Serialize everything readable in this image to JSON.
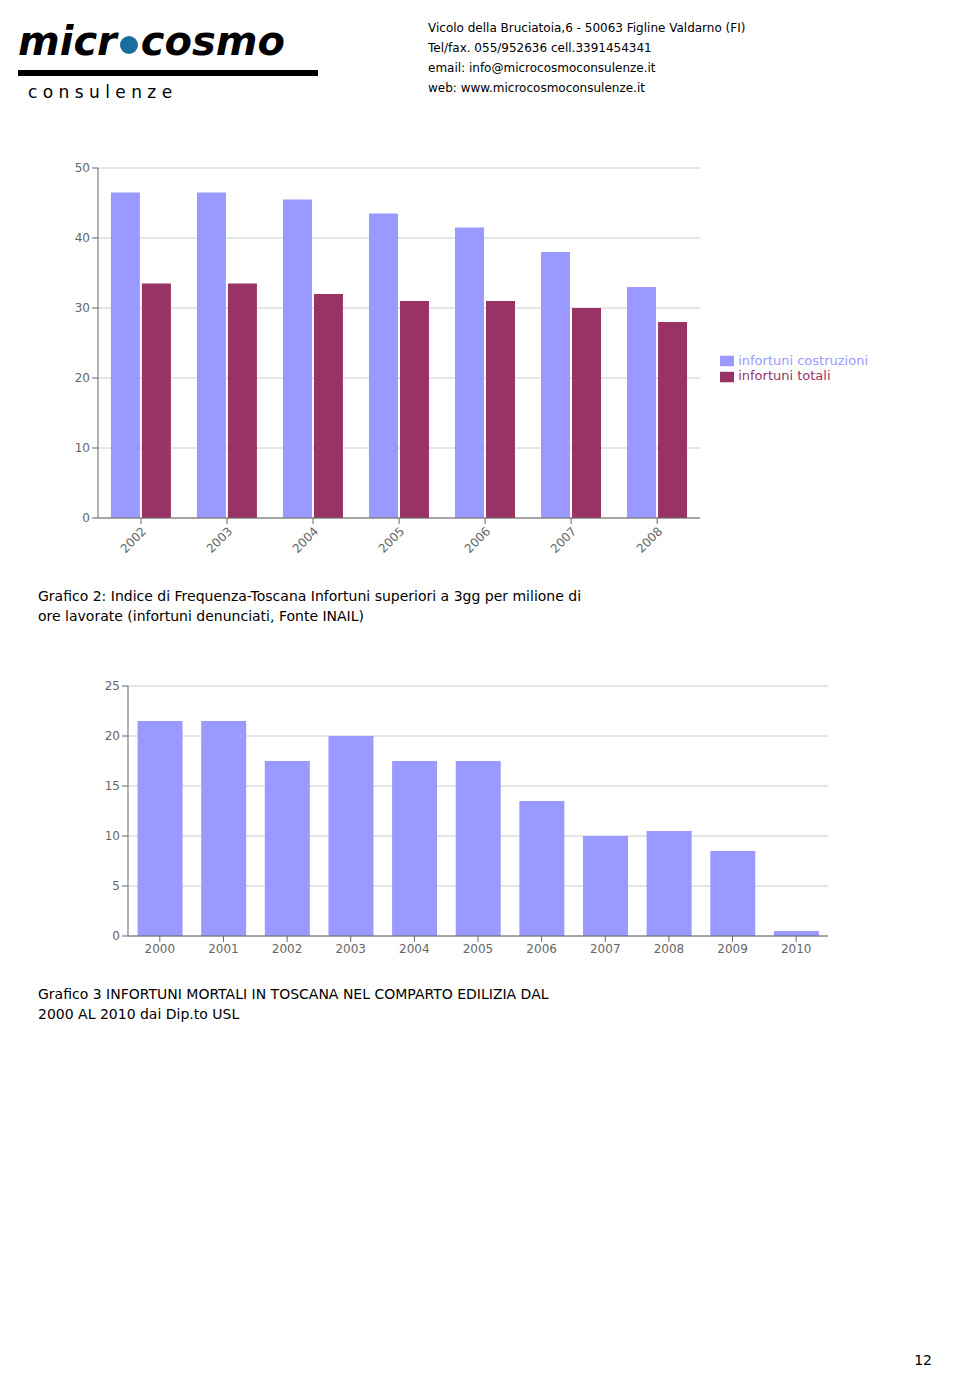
{
  "chart_data": [
    {
      "type": "bar",
      "title": "Grafico 2:  Indice di Frequenza-Toscana Infortuni superiori a 3gg per milione di\nore lavorate (infortuni denunciati, Fonte INAIL)",
      "categories": [
        "2002",
        "2003",
        "2004",
        "2005",
        "2006",
        "2007",
        "2008"
      ],
      "series": [
        {
          "name": "infortuni costruzioni",
          "color": "#9999FF",
          "values": [
            46.5,
            46.5,
            45.5,
            43.5,
            41.5,
            38.0,
            33.0
          ]
        },
        {
          "name": "infortuni totali",
          "color": "#993366",
          "values": [
            33.5,
            33.5,
            32.0,
            31.0,
            31.0,
            30.0,
            28.0
          ]
        }
      ],
      "ylim": [
        0,
        50
      ],
      "yticks": [
        0,
        10,
        20,
        30,
        40,
        50
      ],
      "grid": true,
      "legend": "right",
      "annotations": [
        "micr",
        "cosmo",
        "c o n s u l e n z e",
        "Vicolo della Bruciatoia,6 - 50063 Figline Valdarno (FI)",
        "Tel/fax. 055/952636 cell.3391454341",
        "email: info@microcosmoconsulenze.it",
        "web: www.microcosmoconsulenze.it"
      ]
    },
    {
      "type": "bar",
      "title": "Grafico 3  INFORTUNI MORTALI IN TOSCANA NEL COMPARTO EDILIZIA DAL\n2000 AL 2010 dai Dip.to USL",
      "categories": [
        "2000",
        "2001",
        "2002",
        "2003",
        "2004",
        "2005",
        "2006",
        "2007",
        "2008",
        "2009",
        "2010"
      ],
      "values": [
        21.5,
        21.5,
        17.5,
        20.0,
        17.5,
        17.5,
        13.5,
        10.0,
        10.5,
        8.5,
        0.5
      ],
      "color": "#9999FF",
      "ylim": [
        0,
        25
      ],
      "yticks": [
        0,
        5,
        10,
        15,
        20,
        25
      ],
      "grid": true,
      "annotations": [
        "12"
      ]
    }
  ]
}
